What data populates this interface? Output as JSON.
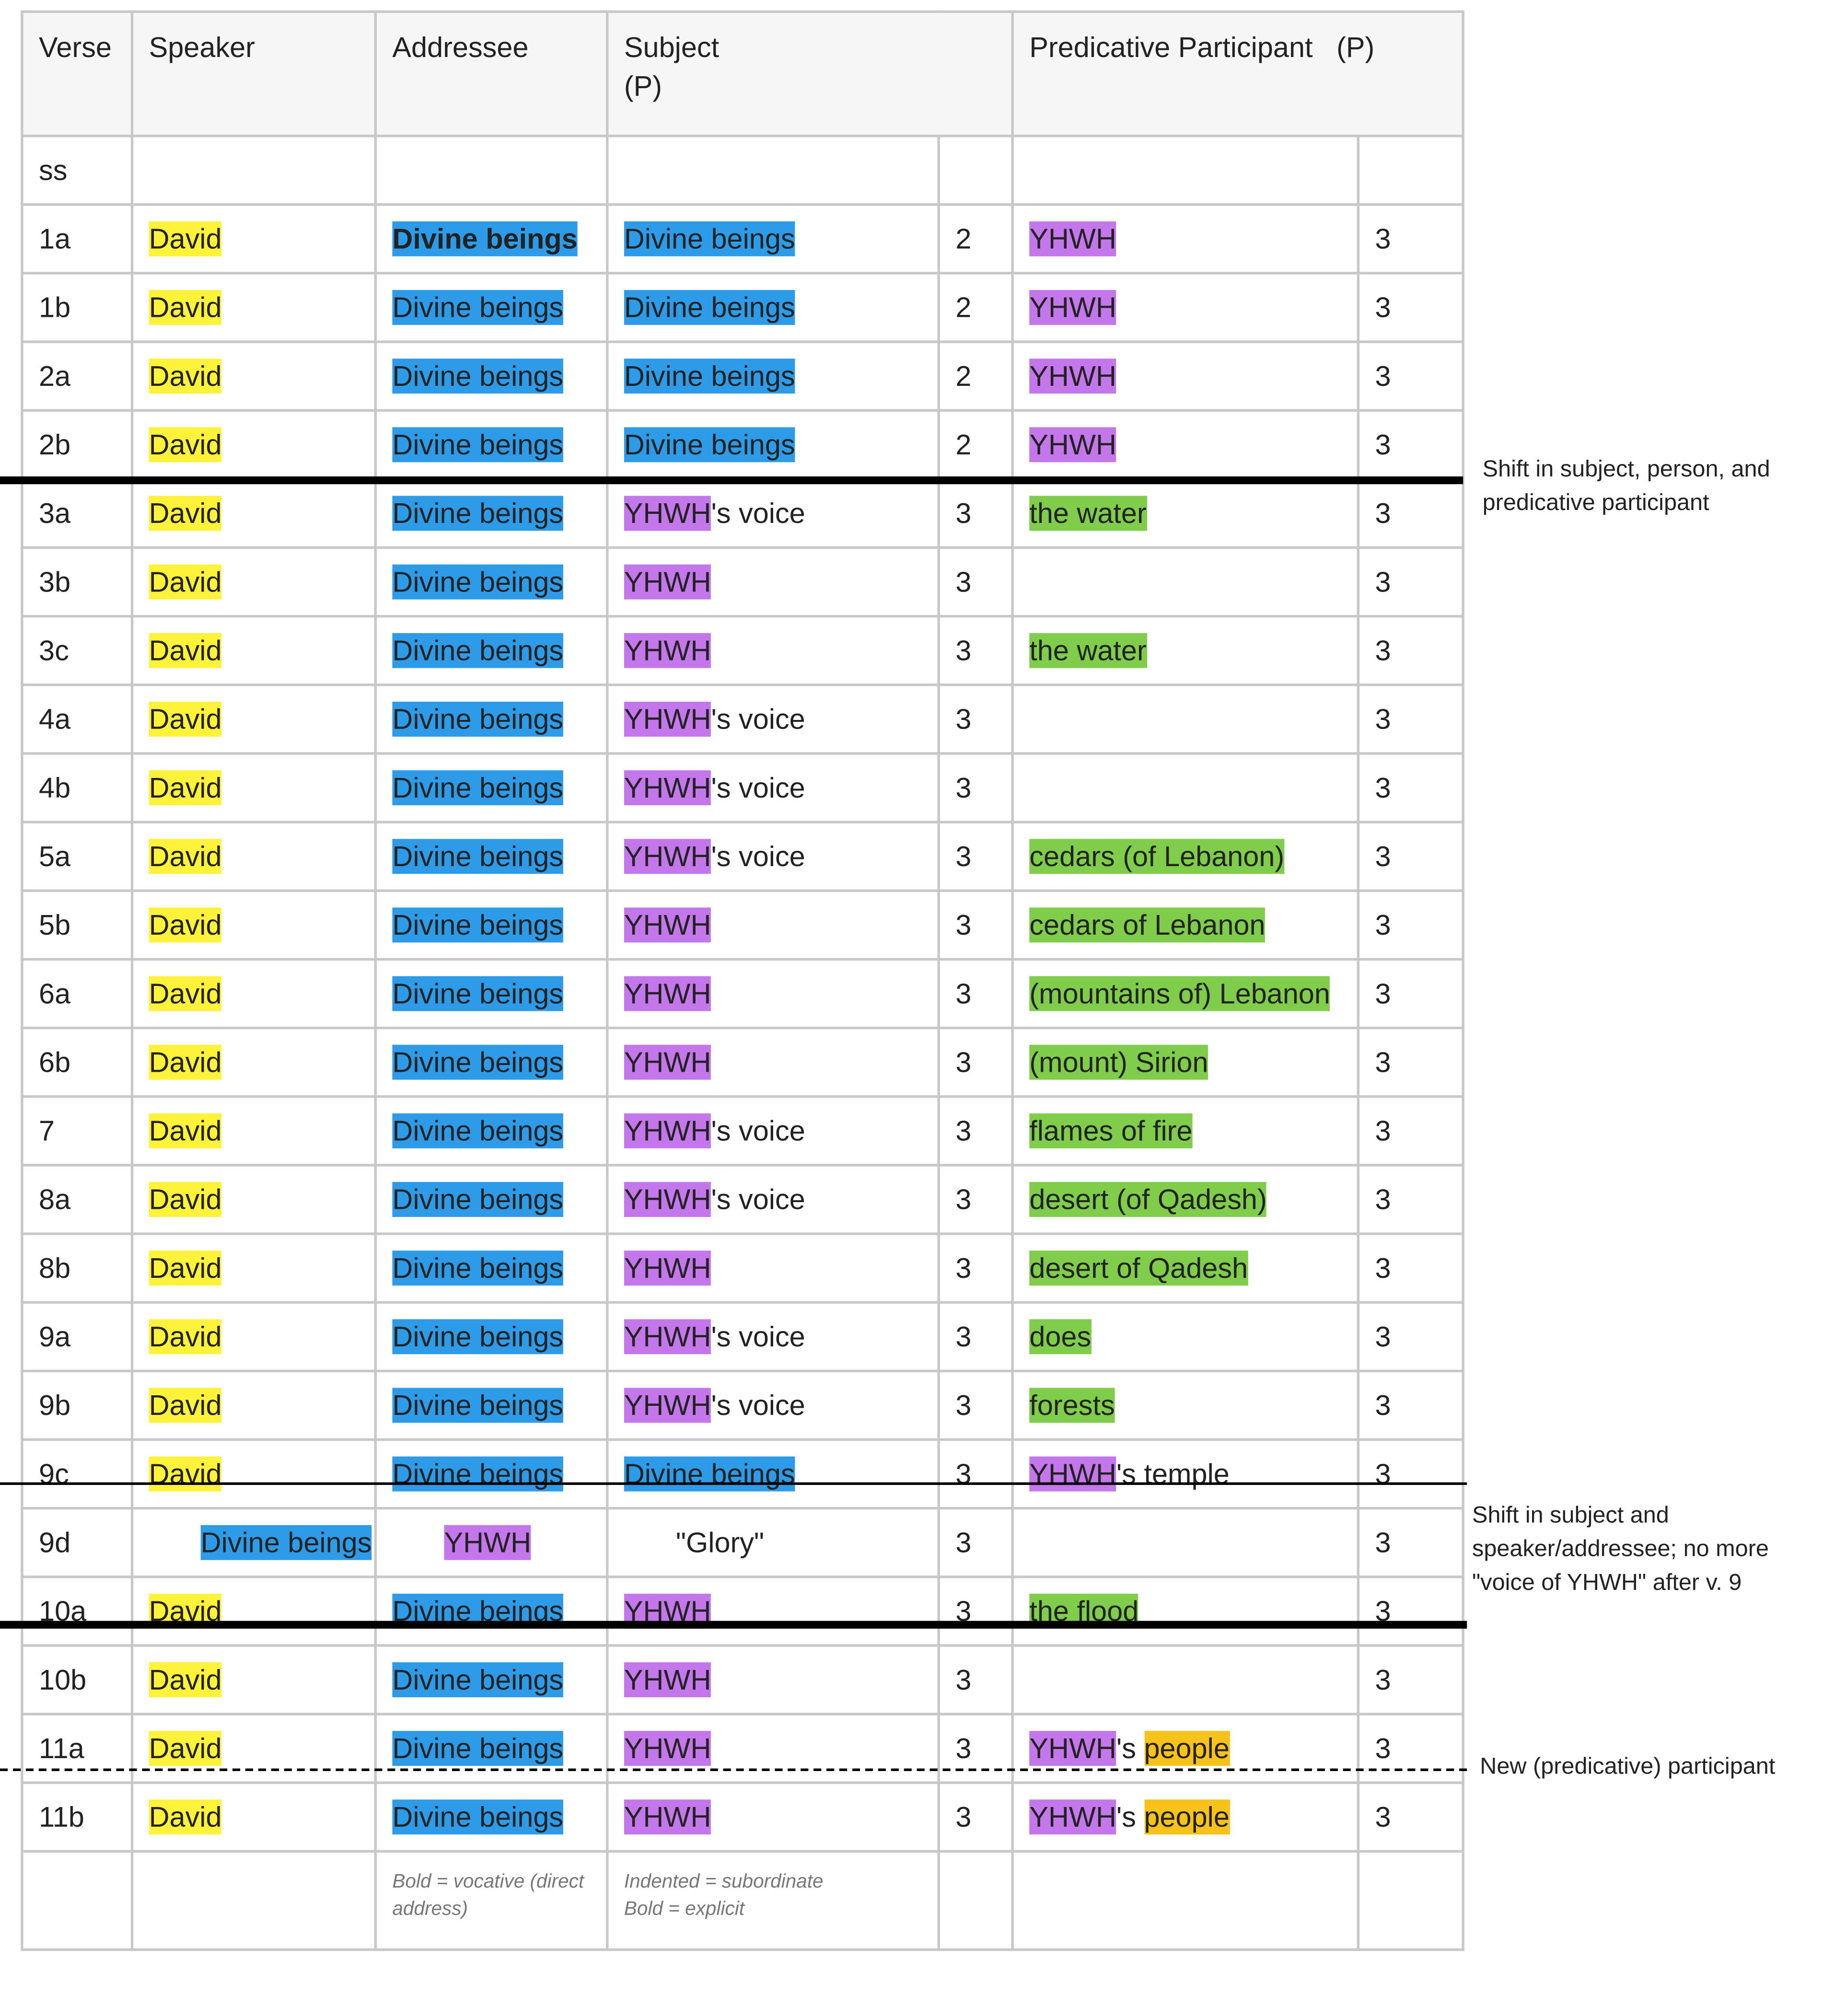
{
  "header": {
    "verse": "Verse",
    "speaker": "Speaker",
    "addressee": "Addressee",
    "subject_line1": "Subject",
    "subject_line2": "(P)",
    "predicative": "Predicative Participant   (P)"
  },
  "ss_label": "ss",
  "rows": [
    {
      "verse": "1a",
      "speaker": "David",
      "addressee": "Divine beings",
      "subject": "Divine beings",
      "subj_p": "2",
      "pred": "YHWH",
      "pred_p": "3"
    },
    {
      "verse": "1b",
      "speaker": "David",
      "addressee": "Divine beings",
      "subject": "Divine beings",
      "subj_p": "2",
      "pred": "YHWH",
      "pred_p": "3"
    },
    {
      "verse": "2a",
      "speaker": "David",
      "addressee": "Divine beings",
      "subject": "Divine beings",
      "subj_p": "2",
      "pred": "YHWH",
      "pred_p": "3"
    },
    {
      "verse": "2b",
      "speaker": "David",
      "addressee": "Divine beings",
      "subject": "Divine beings",
      "subj_p": "2",
      "pred": "YHWH",
      "pred_p": "3"
    },
    {
      "verse": "3a",
      "speaker": "David",
      "addressee": "Divine beings",
      "subject": "YHWH",
      "subject_suffix": "'s voice",
      "subj_p": "3",
      "pred": "the water",
      "pred_p": "3"
    },
    {
      "verse": "3b",
      "speaker": "David",
      "addressee": "Divine beings",
      "subject": "YHWH",
      "subj_p": "3",
      "pred": "",
      "pred_p": "3"
    },
    {
      "verse": "3c",
      "speaker": "David",
      "addressee": "Divine beings",
      "subject": "YHWH",
      "subj_p": "3",
      "pred": "the water",
      "pred_p": "3"
    },
    {
      "verse": "4a",
      "speaker": "David",
      "addressee": "Divine beings",
      "subject": "YHWH",
      "subject_suffix": "'s voice",
      "subj_p": "3",
      "pred": "",
      "pred_p": "3"
    },
    {
      "verse": "4b",
      "speaker": "David",
      "addressee": "Divine beings",
      "subject": "YHWH",
      "subject_suffix": "'s voice",
      "subj_p": "3",
      "pred": "",
      "pred_p": "3"
    },
    {
      "verse": "5a",
      "speaker": "David",
      "addressee": "Divine beings",
      "subject": "YHWH",
      "subject_suffix": "'s voice",
      "subj_p": "3",
      "pred": "cedars (of Lebanon)",
      "pred_p": "3"
    },
    {
      "verse": "5b",
      "speaker": "David",
      "addressee": "Divine beings",
      "subject": "YHWH",
      "subj_p": "3",
      "pred": "cedars of Lebanon",
      "pred_p": "3"
    },
    {
      "verse": "6a",
      "speaker": "David",
      "addressee": "Divine beings",
      "subject": "YHWH",
      "subj_p": "3",
      "pred": "(mountains of) Lebanon",
      "pred_p": "3"
    },
    {
      "verse": "6b",
      "speaker": "David",
      "addressee": "Divine beings",
      "subject": "YHWH",
      "subj_p": "3",
      "pred": "(mount) Sirion",
      "pred_p": "3"
    },
    {
      "verse": "7",
      "speaker": "David",
      "addressee": "Divine beings",
      "subject": "YHWH",
      "subject_suffix": "'s voice",
      "subj_p": "3",
      "pred": "flames of fire",
      "pred_p": "3"
    },
    {
      "verse": "8a",
      "speaker": "David",
      "addressee": "Divine beings",
      "subject": "YHWH",
      "subject_suffix": "'s voice",
      "subj_p": "3",
      "pred": "desert (of Qadesh)",
      "pred_p": "3"
    },
    {
      "verse": "8b",
      "speaker": "David",
      "addressee": "Divine beings",
      "subject": "YHWH",
      "subj_p": "3",
      "pred": "desert of Qadesh",
      "pred_p": "3"
    },
    {
      "verse": "9a",
      "speaker": "David",
      "addressee": "Divine beings",
      "subject": "YHWH",
      "subject_suffix": "'s voice",
      "subj_p": "3",
      "pred": "does",
      "pred_p": "3"
    },
    {
      "verse": "9b",
      "speaker": "David",
      "addressee": "Divine beings",
      "subject": "YHWH",
      "subject_suffix": "'s voice",
      "subj_p": "3",
      "pred": "forests",
      "pred_p": "3"
    },
    {
      "verse": "9c",
      "speaker": "David",
      "addressee": "Divine beings",
      "subject": "Divine beings",
      "subj_p": "3",
      "pred": "YHWH",
      "pred_suffix": "'s temple",
      "pred_p": "3"
    },
    {
      "verse": "9d",
      "speaker": "Divine beings",
      "addressee": "YHWH",
      "subject": "\"Glory\"",
      "subj_p": "3",
      "pred": "",
      "pred_p": "3"
    },
    {
      "verse": "10a",
      "speaker": "David",
      "addressee": "Divine beings",
      "subject": "YHWH",
      "subj_p": "3",
      "pred": "the flood",
      "pred_p": "3"
    },
    {
      "verse": "10b",
      "speaker": "David",
      "addressee": "Divine beings",
      "subject": "YHWH",
      "subj_p": "3",
      "pred": "",
      "pred_p": "3"
    },
    {
      "verse": "11a",
      "speaker": "David",
      "addressee": "Divine beings",
      "subject": "YHWH",
      "subj_p": "3",
      "pred": "YHWH",
      "pred_mid": "'s ",
      "pred_tail": "people",
      "pred_p": "3"
    },
    {
      "verse": "11b",
      "speaker": "David",
      "addressee": "Divine beings",
      "subject": "YHWH",
      "subj_p": "3",
      "pred": "YHWH",
      "pred_mid": "'s ",
      "pred_tail": "people",
      "pred_p": "3"
    }
  ],
  "notes": {
    "addressee_line1": "Bold = vocative (direct",
    "addressee_line2": "address)",
    "subject_line1": "Indented = subordinate",
    "subject_line2": "Bold = explicit"
  },
  "side_notes": {
    "shift1": "Shift in subject, person, and predicative participant",
    "shift2": "Shift in subject and speaker/addressee; no more \"voice of YHWH\" after v. 9",
    "new_participant": "New (predicative) participant"
  },
  "colors": {
    "speaker": "#fff23a",
    "divine_beings": "#2e9be8",
    "yhwh": "#c377ea",
    "predicate": "#80cc4b",
    "people": "#f7c21a"
  }
}
